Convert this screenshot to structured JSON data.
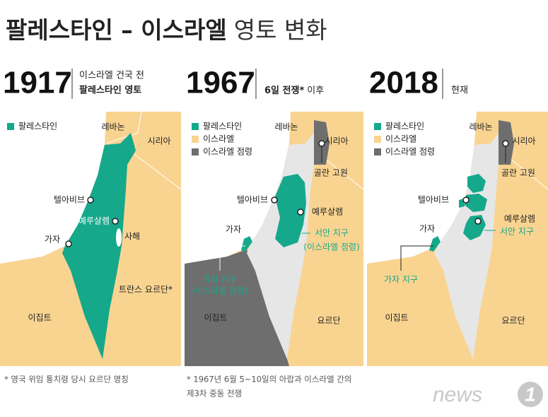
{
  "title": {
    "bold": "팔레스타인 – 이스라엘",
    "regular": "영토 변화"
  },
  "panels": [
    {
      "year": "1917",
      "caption": [
        "이스라엘 건국 전",
        "팔레스타인 영토"
      ],
      "legend": [
        "팔레스타인"
      ],
      "labels": [
        "레바논",
        "시리아",
        "텔아비브",
        "예루살렘",
        "가자",
        "사해",
        "트란스 요르단*",
        "이집트"
      ],
      "footnote": [
        "* 영국 위임 통치령 당시 요르단 명칭"
      ]
    },
    {
      "year": "1967",
      "caption": [
        "6일 전쟁*",
        "이후"
      ],
      "legend": [
        "팔레스타인",
        "이스라엘",
        "이스라엘 점령"
      ],
      "labels": [
        "레바논",
        "시리아",
        "골란 고원",
        "텔아비브",
        "예루살렘",
        "서안 지구",
        "(이스라엘 점령)",
        "가자",
        "가자 지구",
        "(이스라엘 점령)",
        "이집트",
        "요르단"
      ],
      "footnote": [
        "* 1967년 6월 5~10일의 아랍과 이스라엘 간의",
        "제3차 중동 전쟁"
      ]
    },
    {
      "year": "2018",
      "caption": [
        "현재"
      ],
      "legend": [
        "팔레스타인",
        "이스라엘",
        "이스라엘 점령"
      ],
      "labels": [
        "레바논",
        "시리아",
        "골란 고원",
        "텔아비브",
        "예루살렘",
        "서안 지구",
        "가자",
        "가자 지구",
        "이집트",
        "요르단"
      ]
    }
  ],
  "logo": [
    "news",
    "1"
  ]
}
